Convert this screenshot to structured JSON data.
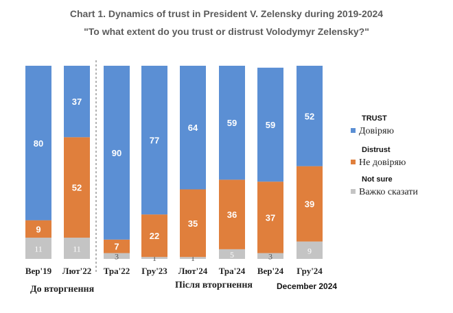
{
  "chart_data": {
    "type": "bar",
    "stacked": true,
    "title": "Chart 1. Dynamics of trust in President V. Zelensky during 2019-2024",
    "subtitle": "\"To what extent do you trust or distrust Volodymyr Zelensky?\"",
    "categories": [
      "Вер'19",
      "Лют'22",
      "Тра'22",
      "Гру'23",
      "Лют'24",
      "Тра'24",
      "Вер'24",
      "Гру'24"
    ],
    "series": [
      {
        "name": "Довіряю",
        "legend_heading": "TRUST",
        "color": "#5b8fd4",
        "values": [
          80,
          37,
          90,
          77,
          64,
          59,
          59,
          52
        ]
      },
      {
        "name": "Не довіряю",
        "legend_heading": "Distrust",
        "color": "#e07f3c",
        "values": [
          9,
          52,
          7,
          22,
          35,
          36,
          37,
          39
        ]
      },
      {
        "name": "Важко сказати",
        "legend_heading": "Not sure",
        "color": "#c4c4c4",
        "values": [
          11,
          11,
          3,
          1,
          1,
          5,
          3,
          9
        ]
      }
    ],
    "period_labels": [
      "До вторгнення",
      "Після вторгнення"
    ],
    "extra_label": "December 2024",
    "ylim": [
      0,
      100
    ],
    "grid": false,
    "legend_position": "right"
  }
}
